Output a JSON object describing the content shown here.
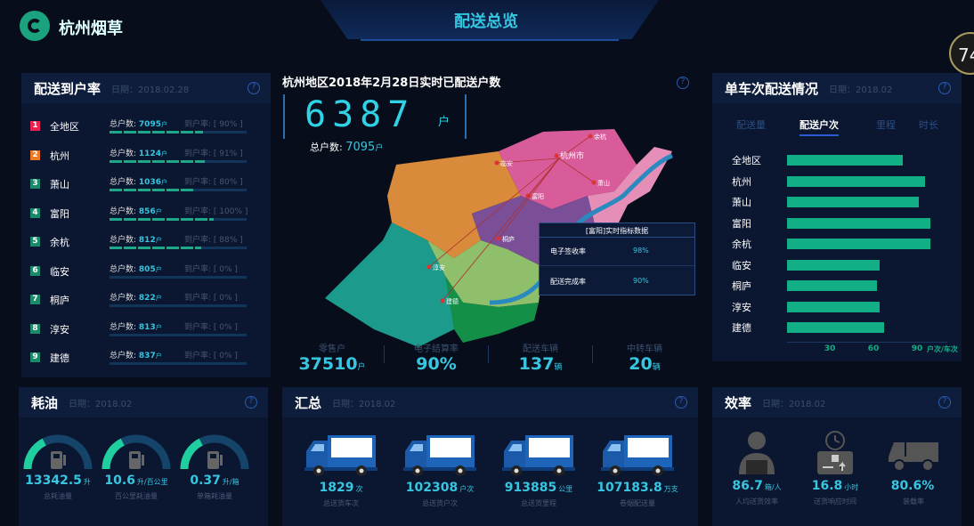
{
  "header": {
    "brand": "杭州烟草",
    "title": "配送总览",
    "badge": "74"
  },
  "delivery_rate": {
    "title": "配送到户率",
    "date": "日期：2018.02.28",
    "total_label": "总户数:",
    "rate_label": "到户率:",
    "unit": "户",
    "rows": [
      {
        "rank": "1",
        "name": "全地区",
        "total": "7095",
        "rate": "90%",
        "fill": 90,
        "color": "#e8234f"
      },
      {
        "rank": "2",
        "name": "杭州",
        "total": "1124",
        "rate": "91%",
        "fill": 91,
        "color": "#f07a23"
      },
      {
        "rank": "3",
        "name": "萧山",
        "total": "1036",
        "rate": "80%",
        "fill": 80,
        "color": "#1b8a6b"
      },
      {
        "rank": "4",
        "name": "富阳",
        "total": "856",
        "rate": "100%",
        "fill": 100,
        "color": "#1b8a6b"
      },
      {
        "rank": "5",
        "name": "余杭",
        "total": "812",
        "rate": "88%",
        "fill": 88,
        "color": "#1b8a6b"
      },
      {
        "rank": "6",
        "name": "临安",
        "total": "805",
        "rate": "0%",
        "fill": 0,
        "color": "#1b8a6b"
      },
      {
        "rank": "7",
        "name": "桐庐",
        "total": "822",
        "rate": "0%",
        "fill": 0,
        "color": "#1b8a6b"
      },
      {
        "rank": "8",
        "name": "淳安",
        "total": "813",
        "rate": "0%",
        "fill": 0,
        "color": "#1b8a6b"
      },
      {
        "rank": "9",
        "name": "建德",
        "total": "837",
        "rate": "0%",
        "fill": 0,
        "color": "#1b8a6b"
      }
    ]
  },
  "center": {
    "title": "杭州地区2018年2月28日实时已配送户数",
    "digits": "6387",
    "unit": "户",
    "total_label": "总户数:",
    "total": "7095",
    "total_unit": "户",
    "map_labels": [
      "余杭",
      "杭州市",
      "临安",
      "萧山",
      "富阳",
      "桐庐",
      "淳安",
      "建德"
    ],
    "popup": {
      "title": "[富阳]实时指标数据",
      "rows": [
        {
          "label": "电子签收率",
          "value": "98%"
        },
        {
          "label": "配送完成率",
          "value": "90%"
        }
      ]
    },
    "stats": [
      {
        "label": "零售户",
        "value": "37510",
        "unit": "户"
      },
      {
        "label": "电子结算率",
        "value": "90%",
        "unit": ""
      },
      {
        "label": "配送车辆",
        "value": "137",
        "unit": "辆"
      },
      {
        "label": "中转车辆",
        "value": "20",
        "unit": "辆"
      }
    ]
  },
  "per_trip": {
    "title": "单车次配送情况",
    "date": "日期：2018.02",
    "tabs": [
      "配送量",
      "配送户次",
      "里程",
      "时长"
    ],
    "active_tab": 1,
    "chart_data": {
      "type": "bar",
      "orientation": "horizontal",
      "categories": [
        "全地区",
        "杭州",
        "萧山",
        "富阳",
        "余杭",
        "临安",
        "桐庐",
        "淳安",
        "建德"
      ],
      "values": [
        80,
        95,
        91,
        99,
        99,
        64,
        62,
        64,
        67
      ],
      "xticks": [
        "30",
        "60",
        "90"
      ],
      "xunit": "户次/车次",
      "xlim": [
        0,
        100
      ],
      "color": "#12ae86"
    }
  },
  "fuel": {
    "title": "耗油",
    "date": "日期：2018.02",
    "items": [
      {
        "value": "13342.5",
        "unit": "升",
        "label": "总耗油量",
        "gauge": 0.35
      },
      {
        "value": "10.6",
        "unit": "升/百公里",
        "label": "百公里耗油量",
        "gauge": 0.35
      },
      {
        "value": "0.37",
        "unit": "升/箱",
        "label": "单箱耗油量",
        "gauge": 0.35
      }
    ]
  },
  "summary": {
    "title": "汇总",
    "date": "日期：2018.02",
    "items": [
      {
        "value": "1829",
        "unit": "次",
        "label": "总送货车次"
      },
      {
        "value": "102308",
        "unit": "户次",
        "label": "总送货户次"
      },
      {
        "value": "913885",
        "unit": "公里",
        "label": "总送货里程"
      },
      {
        "value": "107183.8",
        "unit": "万支",
        "label": "卷烟配送量"
      }
    ]
  },
  "efficiency": {
    "title": "效率",
    "date": "日期：2018.02",
    "items": [
      {
        "value": "86.7",
        "unit": "箱/人",
        "label": "人均送货效率",
        "icon": "person-package-icon"
      },
      {
        "value": "16.8",
        "unit": "小时",
        "label": "送货响应时间",
        "icon": "clock-package-icon"
      },
      {
        "value": "80.6%",
        "unit": "",
        "label": "装载率",
        "icon": "truck-icon"
      }
    ]
  }
}
